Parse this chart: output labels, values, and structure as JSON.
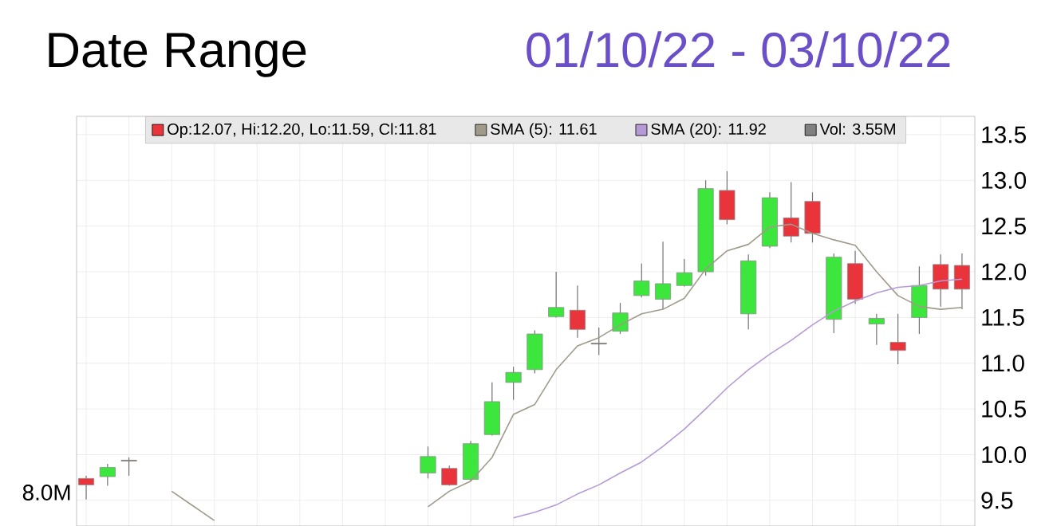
{
  "chart_data": {
    "type": "candlestick",
    "title": "Date Range",
    "subtitle": "01/10/22 - 03/10/22",
    "categories": [
      null,
      null,
      null,
      null,
      null,
      null,
      null,
      null,
      null,
      null,
      null,
      null,
      null,
      null,
      null,
      null,
      null,
      null,
      null,
      null,
      null,
      null,
      null,
      null,
      null,
      null,
      null,
      null,
      null,
      null,
      null,
      null,
      null,
      null,
      null,
      null,
      null,
      null,
      null,
      null,
      null,
      null
    ],
    "series": [
      {
        "name": "Op:12.07, Hi:12.20, Lo:11.59, Cl:11.81",
        "color": "#e8343a",
        "ohlc": [
          [
            9.74,
            9.77,
            9.51,
            9.67
          ],
          [
            9.76,
            9.9,
            9.66,
            9.86
          ],
          [
            9.94,
            9.97,
            9.77,
            9.93
          ],
          null,
          null,
          null,
          null,
          null,
          null,
          null,
          null,
          null,
          null,
          null,
          null,
          null,
          [
            9.8,
            10.09,
            9.74,
            9.98
          ],
          [
            9.85,
            9.88,
            9.66,
            9.67
          ],
          [
            9.73,
            10.15,
            9.71,
            10.12
          ],
          [
            10.22,
            10.79,
            10.21,
            10.58
          ],
          [
            10.79,
            10.96,
            10.6,
            10.9
          ],
          [
            10.93,
            11.36,
            10.89,
            11.32
          ],
          [
            11.51,
            12.0,
            11.5,
            11.61
          ],
          [
            11.58,
            11.85,
            11.28,
            11.37
          ],
          [
            11.22,
            11.39,
            11.09,
            11.21
          ],
          [
            11.35,
            11.66,
            11.32,
            11.55
          ],
          [
            11.74,
            12.09,
            11.72,
            11.9
          ],
          [
            11.7,
            12.33,
            11.59,
            11.87
          ],
          [
            11.85,
            12.14,
            11.84,
            11.99
          ],
          [
            12.0,
            13.0,
            11.96,
            12.91
          ],
          [
            12.89,
            13.1,
            12.52,
            12.57
          ],
          [
            11.54,
            12.19,
            11.37,
            12.12
          ],
          [
            12.28,
            12.87,
            12.26,
            12.81
          ],
          [
            12.59,
            12.98,
            12.32,
            12.39
          ],
          [
            12.77,
            12.87,
            12.32,
            12.42
          ],
          [
            11.48,
            12.2,
            11.33,
            12.16
          ],
          [
            12.09,
            12.23,
            11.65,
            11.7
          ],
          [
            11.43,
            11.54,
            11.2,
            11.49
          ],
          [
            11.23,
            11.54,
            10.99,
            11.14
          ],
          [
            11.5,
            12.06,
            11.32,
            11.85
          ],
          [
            12.08,
            12.19,
            11.62,
            11.81
          ],
          [
            12.07,
            12.2,
            11.59,
            11.81
          ]
        ],
        "colors": [
          "#e8343a",
          "#3de63d",
          "#5a3a2a",
          null,
          null,
          null,
          null,
          null,
          null,
          null,
          null,
          null,
          null,
          null,
          null,
          null,
          "#3de63d",
          "#e8343a",
          "#3de63d",
          "#3de63d",
          "#3de63d",
          "#3de63d",
          "#3de63d",
          "#e8343a",
          "#5a3a2a",
          "#3de63d",
          "#3de63d",
          "#3de63d",
          "#3de63d",
          "#3de63d",
          "#e8343a",
          "#3de63d",
          "#3de63d",
          "#e8343a",
          "#e8343a",
          "#3de63d",
          "#e8343a",
          "#3de63d",
          "#e8343a",
          "#3de63d",
          "#e8343a",
          "#e8343a"
        ]
      },
      {
        "name": "SMA (5): 11.61",
        "type": "line",
        "color": "#a09a8a",
        "values": [
          null,
          null,
          null,
          null,
          9.6,
          9.44,
          9.28,
          null,
          null,
          null,
          null,
          null,
          null,
          null,
          null,
          null,
          9.43,
          9.6,
          9.71,
          9.97,
          10.44,
          10.55,
          10.93,
          11.19,
          11.28,
          11.42,
          11.54,
          11.59,
          11.71,
          12.03,
          12.23,
          12.3,
          12.49,
          12.52,
          12.42,
          12.35,
          12.29,
          12.0,
          11.74,
          11.62,
          11.59,
          11.61
        ]
      },
      {
        "name": "SMA (20): 11.92",
        "type": "line",
        "color": "#b59ad6",
        "values": [
          null,
          null,
          null,
          null,
          null,
          null,
          null,
          null,
          null,
          null,
          null,
          null,
          null,
          null,
          null,
          null,
          null,
          null,
          null,
          null,
          9.31,
          9.37,
          9.45,
          9.57,
          9.67,
          9.8,
          9.92,
          10.09,
          10.28,
          10.5,
          10.73,
          10.93,
          11.1,
          11.25,
          11.42,
          11.57,
          11.68,
          11.77,
          11.83,
          11.85,
          11.9,
          11.92
        ]
      },
      {
        "name": "Vol: 3.55M",
        "type": "bar",
        "color": "#808080",
        "values": [
          null,
          null,
          null,
          null,
          null,
          null,
          null,
          null,
          null,
          null,
          null,
          null,
          null,
          null,
          null,
          null,
          null,
          null,
          null,
          null,
          null,
          null,
          null,
          null,
          null,
          null,
          null,
          null,
          null,
          null,
          null,
          null,
          null,
          null,
          null,
          null,
          null,
          null,
          null,
          null,
          null,
          null
        ]
      }
    ],
    "annotations": [
      "8.0M"
    ],
    "ylim": [
      9.22,
      13.7
    ],
    "yticks": [
      9.5,
      {
        "value": 10,
        "label": "10.0"
      },
      10.5,
      {
        "value": 11,
        "label": "11.0"
      },
      11.5,
      {
        "value": 12,
        "label": "12.0"
      },
      12.5,
      {
        "value": 13,
        "label": "13.0"
      },
      13.5
    ],
    "grid": true,
    "legend": "top"
  }
}
